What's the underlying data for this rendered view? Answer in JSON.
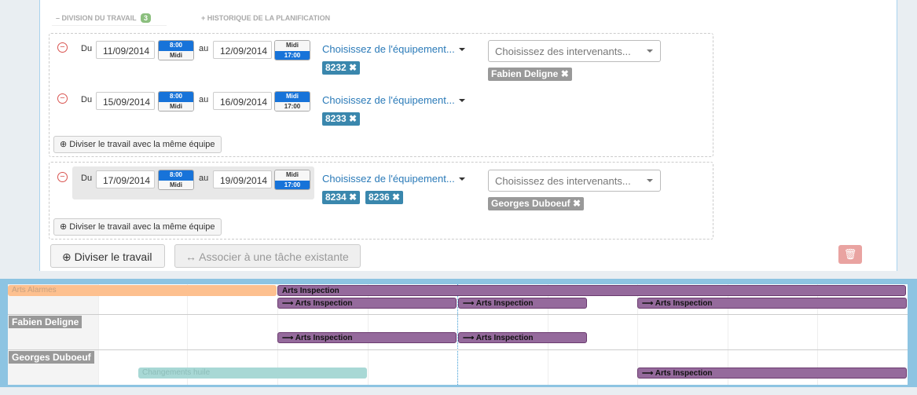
{
  "tabs": {
    "division": {
      "label": "– DIVISION DU TRAVAIL",
      "count": "3"
    },
    "history": "+ HISTORIQUE DE LA PLANIFICATION"
  },
  "groups": [
    {
      "rows": [
        {
          "from": "Du",
          "start": "11/09/2014",
          "start_slots": [
            "8:00",
            "Midi"
          ],
          "to": "au",
          "end": "12/09/2014",
          "end_slots": [
            "Midi",
            "17:00"
          ],
          "equipment_placeholder": "Choisissez de l'équipement...",
          "equipment": [
            "8232"
          ],
          "workers_placeholder": "Choisissez des intervenants...",
          "workers": [
            "Fabien Deligne"
          ]
        },
        {
          "from": "Du",
          "start": "15/09/2014",
          "start_slots": [
            "8:00",
            "Midi"
          ],
          "to": "au",
          "end": "16/09/2014",
          "end_slots": [
            "Midi",
            "17:00"
          ],
          "equipment_placeholder": "Choisissez de l'équipement...",
          "equipment": [
            "8233"
          ]
        }
      ],
      "split_button": "Diviser le travail avec la même équipe"
    },
    {
      "rows": [
        {
          "from": "Du",
          "start": "17/09/2014",
          "start_slots": [
            "8:00",
            "Midi"
          ],
          "to": "au",
          "end": "19/09/2014",
          "end_slots": [
            "Midi",
            "17:00"
          ],
          "equipment_placeholder": "Choisissez de l'équipement...",
          "equipment": [
            "8234",
            "8236"
          ],
          "workers_placeholder": "Choisissez des intervenants...",
          "workers": [
            "Georges Duboeuf"
          ]
        }
      ],
      "split_button": "Diviser le travail avec la même équipe"
    }
  ],
  "actions": {
    "split": "Diviser le travail",
    "associate": "Associer à une tâche existante"
  },
  "gantt": {
    "rows": [
      {
        "bars": [
          {
            "label": "Arts Alarmes"
          },
          {
            "label": "Arts Inspection"
          },
          {
            "label": "Arts Inspection"
          },
          {
            "label": "Arts Inspection"
          },
          {
            "label": "Arts Inspection"
          }
        ]
      },
      {
        "label": "Fabien Deligne",
        "bars": [
          {
            "label": "Arts Inspection"
          },
          {
            "label": "Arts Inspection"
          }
        ]
      },
      {
        "label": "Georges Duboeuf",
        "bars": [
          {
            "label": "Changements huile"
          },
          {
            "label": "Arts Inspection"
          }
        ]
      }
    ]
  }
}
